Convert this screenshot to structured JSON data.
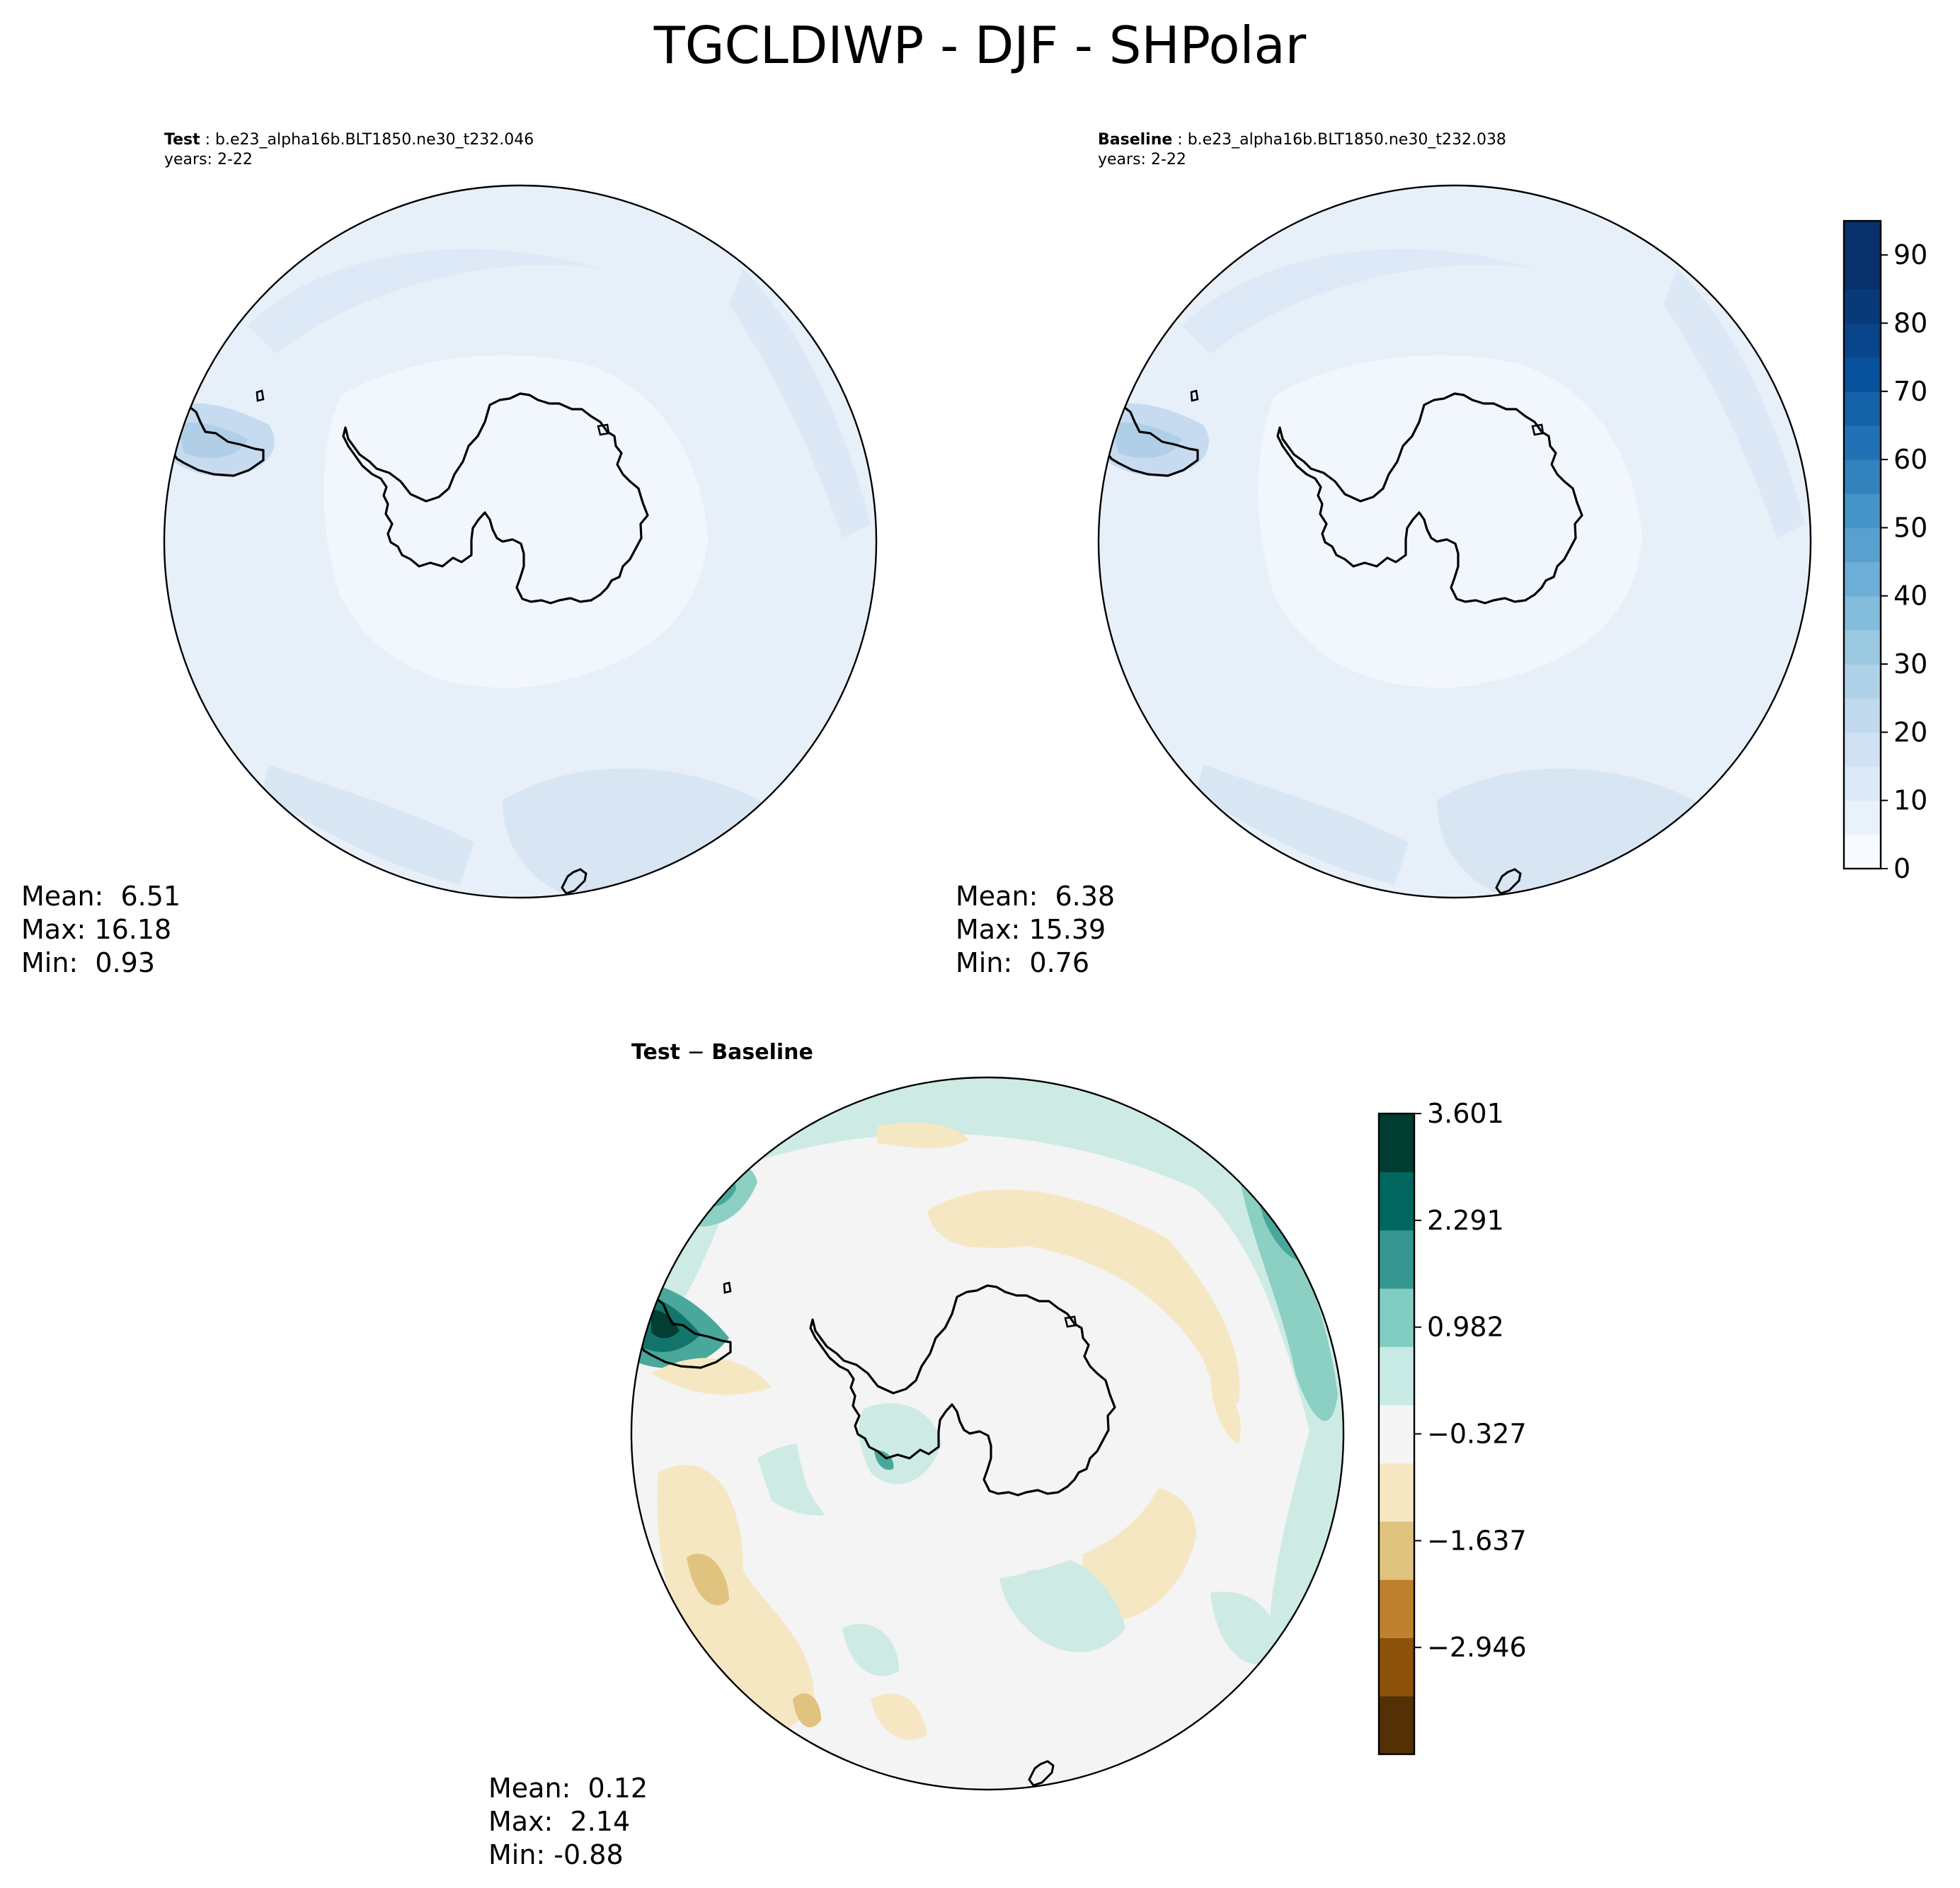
{
  "title": "TGCLDIWP - DJF - SHPolar",
  "panels": {
    "test": {
      "label": "Test",
      "case": " : b.e23_alpha16b.BLT1850.ne30_t232.046",
      "years": "years: 2-22",
      "stats": {
        "mean": "Mean:  6.51",
        "max": "Max: 16.18",
        "min": "Min:  0.93"
      }
    },
    "baseline": {
      "label": "Baseline",
      "case": " : b.e23_alpha16b.BLT1850.ne30_t232.038",
      "years": "years: 2-22",
      "stats": {
        "mean": "Mean:  6.38",
        "max": "Max: 15.39",
        "min": "Min:  0.76"
      }
    },
    "diff": {
      "label_a": "Test",
      "label_sep": " − ",
      "label_b": "Baseline",
      "stats": {
        "mean": "Mean:  0.12",
        "max": "Max:  2.14",
        "min": "Min: -0.88"
      }
    }
  },
  "chart_data": [
    {
      "type": "heatmap",
      "projection": "South Polar Stereographic",
      "name": "Test",
      "summary": {
        "mean": 6.51,
        "max": 16.18,
        "min": 0.93
      },
      "colormap": "Blues",
      "shared_colorbar": true
    },
    {
      "type": "heatmap",
      "projection": "South Polar Stereographic",
      "name": "Baseline",
      "summary": {
        "mean": 6.38,
        "max": 15.39,
        "min": 0.76
      },
      "colormap": "Blues",
      "colorbar": {
        "range": [
          0,
          95
        ],
        "levels": [
          0,
          5,
          10,
          15,
          20,
          25,
          30,
          35,
          40,
          45,
          50,
          55,
          60,
          65,
          70,
          75,
          80,
          85,
          90,
          95
        ],
        "ticks": [
          "0",
          "10",
          "20",
          "30",
          "40",
          "50",
          "60",
          "70",
          "80",
          "90"
        ],
        "colors": [
          "#f7fbff",
          "#e9f2fb",
          "#dce9f6",
          "#cfe1f2",
          "#c1d9ed",
          "#afd1e7",
          "#9ac8e0",
          "#84bcdb",
          "#6caed6",
          "#58a1cf",
          "#4594c7",
          "#3282be",
          "#2171b5",
          "#1462a8",
          "#08519c",
          "#08458a",
          "#083a7a",
          "#08306b",
          "#08306b"
        ]
      }
    },
    {
      "type": "heatmap",
      "projection": "South Polar Stereographic",
      "name": "Test − Baseline",
      "summary": {
        "mean": 0.12,
        "max": 2.14,
        "min": -0.88
      },
      "colormap": "BrBG",
      "colorbar": {
        "range": [
          -4.255,
          3.601
        ],
        "ticks": [
          "3.601",
          "2.291",
          "0.982",
          "−0.327",
          "−1.637",
          "−2.946"
        ],
        "colors": [
          "#543005",
          "#8c510a",
          "#bf812d",
          "#dfc27d",
          "#f6e8c3",
          "#f5f5f5",
          "#c7eae5",
          "#80cdc1",
          "#35978f",
          "#01665e",
          "#003c30"
        ]
      }
    }
  ]
}
